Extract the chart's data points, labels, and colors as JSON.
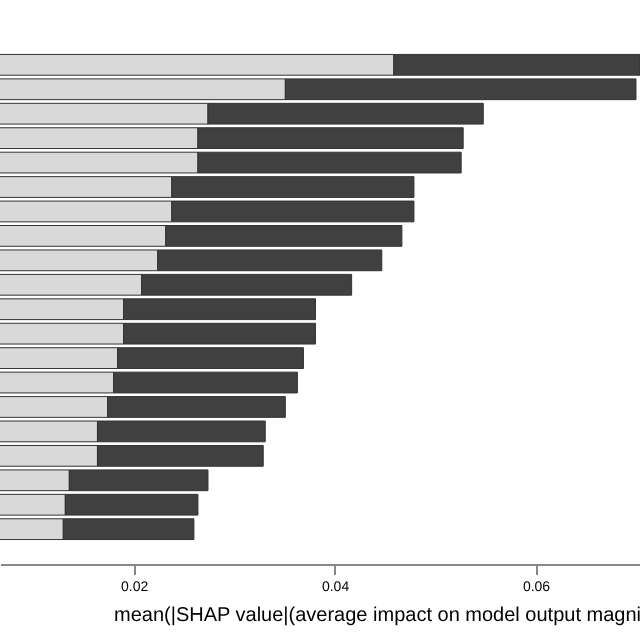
{
  "chart_data": {
    "type": "bar",
    "orientation": "horizontal",
    "stacked": true,
    "xlabel": "mean(|SHAP value|(average impact on model output magni",
    "categories": [
      null,
      null,
      null,
      null,
      null,
      null,
      null,
      null,
      null,
      null,
      null,
      null,
      null,
      null,
      null,
      null,
      null,
      null,
      null,
      null
    ],
    "series": [
      {
        "color": "#d9d9d9",
        "values": [
          0.0459,
          0.0351,
          0.0274,
          0.0264,
          0.0264,
          0.0238,
          0.0238,
          0.0232,
          0.0224,
          0.0208,
          0.019,
          0.019,
          0.0184,
          0.018,
          0.0174,
          0.0164,
          0.0164,
          0.0136,
          0.0132,
          0.013
        ]
      },
      {
        "color": "#404040",
        "values": [
          0.0245,
          0.0349,
          0.0274,
          0.0264,
          0.0262,
          0.0241,
          0.0241,
          0.0235,
          0.0223,
          0.0209,
          0.0191,
          0.0191,
          0.0185,
          0.0183,
          0.0177,
          0.0167,
          0.0165,
          0.0138,
          0.0132,
          0.013
        ]
      }
    ],
    "xlim": [
      0.0067,
      0.0704
    ],
    "xticks": [
      0.02,
      0.04,
      0.06
    ],
    "grid": false,
    "legend": false,
    "tick_labels": "x"
  }
}
